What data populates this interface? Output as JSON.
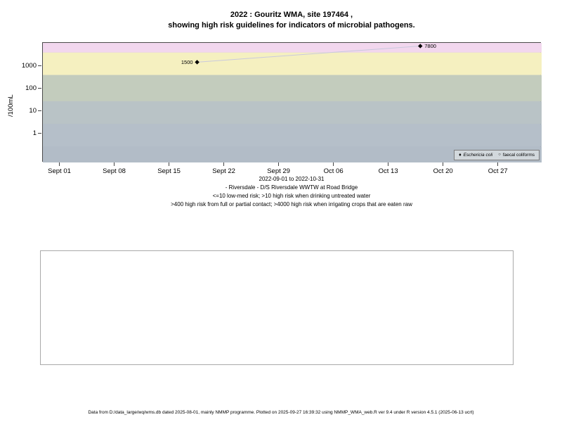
{
  "title": {
    "line1": "2022 : Gouritz WMA, site 197464 ,",
    "line2": "showing high risk guidelines for indicators of microbial pathogens."
  },
  "chart_data": {
    "type": "scatter",
    "title": "2022 : Gouritz WMA, site 197464 , showing high risk guidelines for indicators of microbial pathogens.",
    "xlabel": "",
    "ylabel": "/100mL",
    "y_scale": "log",
    "ylim": [
      0.05,
      10700
    ],
    "y_ticks": [
      1,
      10,
      100,
      1000
    ],
    "x_ticks": [
      "Sept 01",
      "Sept 08",
      "Sept 15",
      "Sept 22",
      "Sept 29",
      "Oct 06",
      "Oct 13",
      "Oct 20",
      "Oct 27"
    ],
    "x_tick_days": [
      0,
      7,
      14,
      21,
      28,
      35,
      42,
      49,
      56
    ],
    "x_range_days": [
      -2.2,
      61.5
    ],
    "date_range": "2022-09-01 to 2022-10-31",
    "legend_position": "bottom-right-inside",
    "series": [
      {
        "name": "Eschericia coli",
        "marker": "filled-diamond",
        "glyph": "♦",
        "line_color": "#c9c9dd",
        "points": [
          {
            "x_day": 17.5,
            "value": 1500,
            "label": "1500",
            "label_side": "left"
          },
          {
            "x_day": 46,
            "value": 7800,
            "label": "7800",
            "label_side": "right"
          }
        ]
      },
      {
        "name": "faecal coliforms",
        "marker": "open-circle",
        "glyph": "○",
        "points": []
      }
    ],
    "bands": [
      {
        "name": "irrigation-high-risk-gt4000",
        "from": 4000,
        "to": 11000,
        "color": "#f2d7ee"
      },
      {
        "name": "contact-high-risk-400-4000",
        "from": 400,
        "to": 4000,
        "color": "#f5f0c0"
      },
      {
        "name": "zone-27-400",
        "from": 27,
        "to": 400,
        "color": "#c3ccbd"
      },
      {
        "name": "zone-2.7-27",
        "from": 2.7,
        "to": 27,
        "color": "#b9c3c6"
      },
      {
        "name": "zone-0.27-2.7",
        "from": 0.27,
        "to": 2.7,
        "color": "#b5bfc9"
      },
      {
        "name": "zone-bottom",
        "from": 0.05,
        "to": 0.27,
        "color": "#b2bcc7"
      }
    ]
  },
  "caption": {
    "line1": "2022-09-01 to 2022-10-31",
    "line2": "- Riversdale - D/S Riversdale WWTW at Road Bridge",
    "line3": "<=10 low-med risk; >10 high risk when drinking untreated water",
    "line4": ">400 high risk from full or partial contact; >4000 high risk when irrigating crops that are eaten raw"
  },
  "footer": "Data from D:/data_large/wq/wms.db dated 2025-08-01, mainly NMMP programme. Plotted on 2025-09-27 16:39:32 using NMMP_WMA_web.R ver 9.4 under R version 4.5.1 (2025-06-13 ucrt)"
}
